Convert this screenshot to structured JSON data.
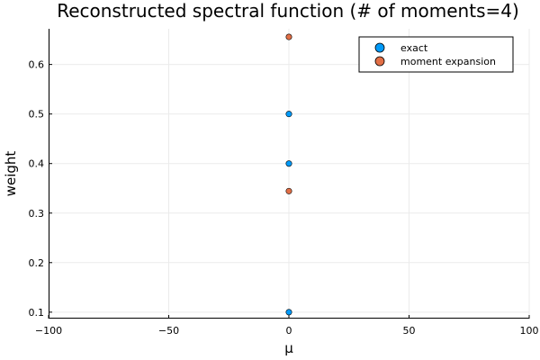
{
  "chart_data": {
    "type": "scatter",
    "title": "Reconstructed spectral function (# of moments=4)",
    "xlabel": "μ",
    "ylabel": "weight",
    "xlim": [
      -100,
      100
    ],
    "ylim": [
      0.087,
      0.672
    ],
    "xticks": [
      -100,
      -50,
      0,
      50,
      100
    ],
    "xtick_labels": [
      "−100",
      "−50",
      "0",
      "50",
      "100"
    ],
    "yticks": [
      0.1,
      0.2,
      0.3,
      0.4,
      0.5,
      0.6
    ],
    "ytick_labels": [
      "0.1",
      "0.2",
      "0.3",
      "0.4",
      "0.5",
      "0.6"
    ],
    "grid": true,
    "legend_position": "top-right",
    "series": [
      {
        "name": "exact",
        "color": "#009af9",
        "x": [
          0,
          0,
          0
        ],
        "y": [
          0.1,
          0.4,
          0.5
        ]
      },
      {
        "name": "moment expansion",
        "color": "#e26f46",
        "x": [
          0,
          0
        ],
        "y": [
          0.3444,
          0.6556
        ]
      }
    ]
  }
}
